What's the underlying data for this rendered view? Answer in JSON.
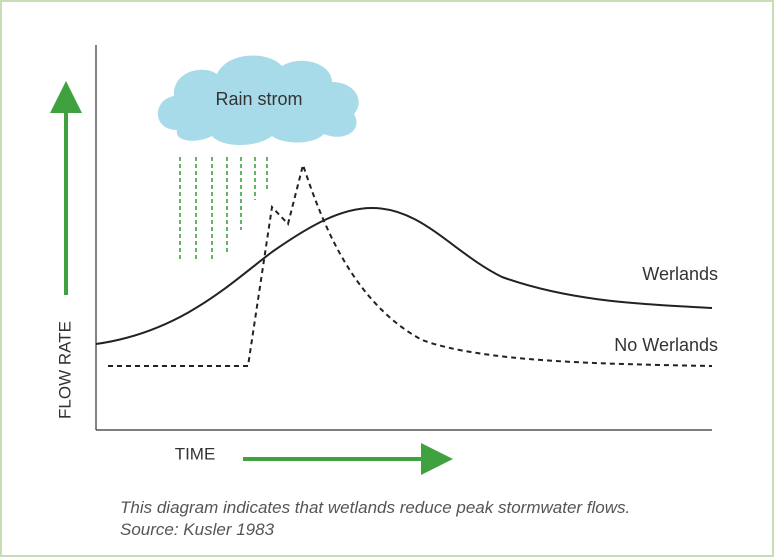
{
  "diagram": {
    "cloud_label": "Rain strom",
    "curve_labels": {
      "wetlands": "Werlands",
      "no_wetlands": "No Werlands"
    },
    "y_axis_label": "FLOW RATE",
    "x_axis_label": "TIME"
  },
  "caption": {
    "line1": "This diagram indicates that wetlands reduce peak stormwater flows.",
    "line2": "Source: Kusler 1983"
  }
}
